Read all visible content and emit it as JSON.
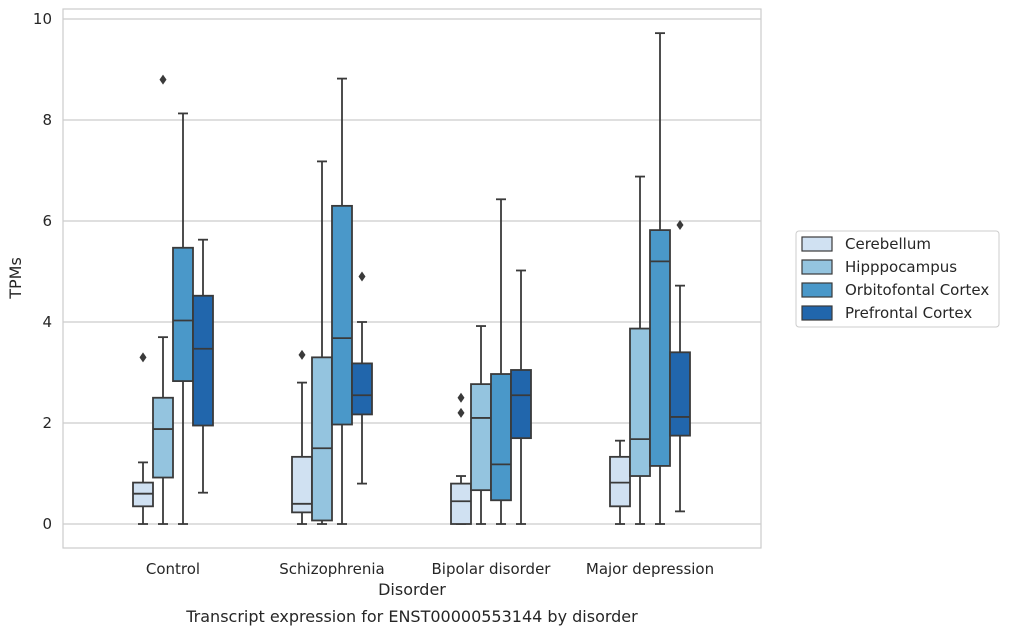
{
  "chart_data": {
    "type": "box",
    "xlabel": "Disorder",
    "ylabel": "TPMs",
    "caption": "Transcript expression for ENST00000553144 by disorder",
    "ylim": [
      -0.45,
      10.2
    ],
    "yticks": [
      0,
      2,
      4,
      6,
      8,
      10
    ],
    "grid": "horizontal",
    "legend_position": "right",
    "categories": [
      "Control",
      "Schizophrenia",
      "Bipolar disorder",
      "Major depression"
    ],
    "series": [
      {
        "name": "Cerebellum",
        "color": "#d0e1f2",
        "boxes": [
          {
            "whisker_low": 0.0,
            "q1": 0.35,
            "median": 0.6,
            "q3": 0.82,
            "whisker_high": 1.22,
            "outliers": [
              3.3
            ]
          },
          {
            "whisker_low": 0.0,
            "q1": 0.23,
            "median": 0.4,
            "q3": 1.33,
            "whisker_high": 2.8,
            "outliers": [
              3.35
            ]
          },
          {
            "whisker_low": 0.0,
            "q1": 0.0,
            "median": 0.45,
            "q3": 0.8,
            "whisker_high": 0.95,
            "outliers": [
              2.5,
              2.2
            ]
          },
          {
            "whisker_low": 0.0,
            "q1": 0.35,
            "median": 0.82,
            "q3": 1.33,
            "whisker_high": 1.65,
            "outliers": []
          }
        ]
      },
      {
        "name": "Hipppocampus",
        "color": "#94c4df",
        "boxes": [
          {
            "whisker_low": 0.0,
            "q1": 0.92,
            "median": 1.88,
            "q3": 2.5,
            "whisker_high": 3.7,
            "outliers": [
              8.8
            ]
          },
          {
            "whisker_low": 0.0,
            "q1": 0.07,
            "median": 1.5,
            "q3": 3.3,
            "whisker_high": 7.18,
            "outliers": []
          },
          {
            "whisker_low": 0.0,
            "q1": 0.67,
            "median": 2.1,
            "q3": 2.77,
            "whisker_high": 3.92,
            "outliers": []
          },
          {
            "whisker_low": 0.0,
            "q1": 0.95,
            "median": 1.68,
            "q3": 3.87,
            "whisker_high": 6.88,
            "outliers": []
          }
        ]
      },
      {
        "name": "Orbitofontal Cortex",
        "color": "#4a98c9",
        "boxes": [
          {
            "whisker_low": 0.0,
            "q1": 2.83,
            "median": 4.03,
            "q3": 5.47,
            "whisker_high": 8.13,
            "outliers": []
          },
          {
            "whisker_low": 0.0,
            "q1": 1.97,
            "median": 3.68,
            "q3": 6.3,
            "whisker_high": 8.82,
            "outliers": []
          },
          {
            "whisker_low": 0.0,
            "q1": 0.47,
            "median": 1.18,
            "q3": 2.97,
            "whisker_high": 6.43,
            "outliers": []
          },
          {
            "whisker_low": 0.0,
            "q1": 1.15,
            "median": 5.2,
            "q3": 5.82,
            "whisker_high": 9.72,
            "outliers": []
          }
        ]
      },
      {
        "name": "Prefrontal Cortex",
        "color": "#2166ac",
        "boxes": [
          {
            "whisker_low": 0.62,
            "q1": 1.95,
            "median": 3.47,
            "q3": 4.52,
            "whisker_high": 5.63,
            "outliers": []
          },
          {
            "whisker_low": 0.8,
            "q1": 2.17,
            "median": 2.55,
            "q3": 3.18,
            "whisker_high": 4.0,
            "outliers": [
              4.9
            ]
          },
          {
            "whisker_low": 0.0,
            "q1": 1.7,
            "median": 2.55,
            "q3": 3.05,
            "whisker_high": 5.02,
            "outliers": []
          },
          {
            "whisker_low": 0.25,
            "q1": 1.75,
            "median": 2.12,
            "q3": 3.4,
            "whisker_high": 4.72,
            "outliers": [
              5.92
            ]
          }
        ]
      }
    ]
  },
  "colors": {
    "grid": "#cccccc",
    "frame": "#cccccc",
    "stroke": "#3a3a3a",
    "legend_border": "#cccccc"
  }
}
